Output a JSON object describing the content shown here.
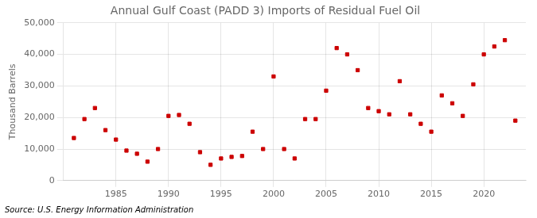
{
  "chart_data": {
    "type": "scatter",
    "title": "Annual Gulf Coast (PADD 3) Imports of Residual Fuel Oil",
    "ylabel": "Thousand Barrels",
    "annotation": "Source: U.S. Energy Information Administration",
    "x": [
      1981,
      1982,
      1983,
      1984,
      1985,
      1986,
      1987,
      1988,
      1989,
      1990,
      1991,
      1992,
      1993,
      1994,
      1995,
      1996,
      1997,
      1998,
      1999,
      2000,
      2001,
      2002,
      2003,
      2004,
      2005,
      2006,
      2007,
      2008,
      2009,
      2010,
      2011,
      2012,
      2013,
      2014,
      2015,
      2016,
      2017,
      2018,
      2019,
      2020,
      2021,
      2022,
      2023
    ],
    "values": [
      13500,
      19500,
      23000,
      16000,
      13000,
      9500,
      8500,
      6000,
      10000,
      20500,
      20800,
      18000,
      9000,
      5000,
      7000,
      7500,
      7800,
      15500,
      10000,
      33000,
      10000,
      7000,
      19500,
      19500,
      28500,
      42000,
      40000,
      35000,
      23000,
      22000,
      21000,
      31500,
      21000,
      18000,
      15500,
      27000,
      24500,
      20500,
      30500,
      40000,
      42500,
      44500,
      19000
    ],
    "color": "#cc0000",
    "marker": "square",
    "xlim": [
      1980,
      2024
    ],
    "xticks": [
      1985,
      1990,
      1995,
      2000,
      2005,
      2010,
      2015,
      2020
    ],
    "ylim": [
      0,
      50000
    ],
    "yticks": [
      0,
      {
        "value": 10000,
        "label": "10,000"
      },
      {
        "value": 20000,
        "label": "20,000"
      },
      {
        "value": 30000,
        "label": "30,000"
      },
      {
        "value": 40000,
        "label": "40,000"
      },
      {
        "value": 50000,
        "label": "50,000"
      }
    ],
    "grid": true
  }
}
